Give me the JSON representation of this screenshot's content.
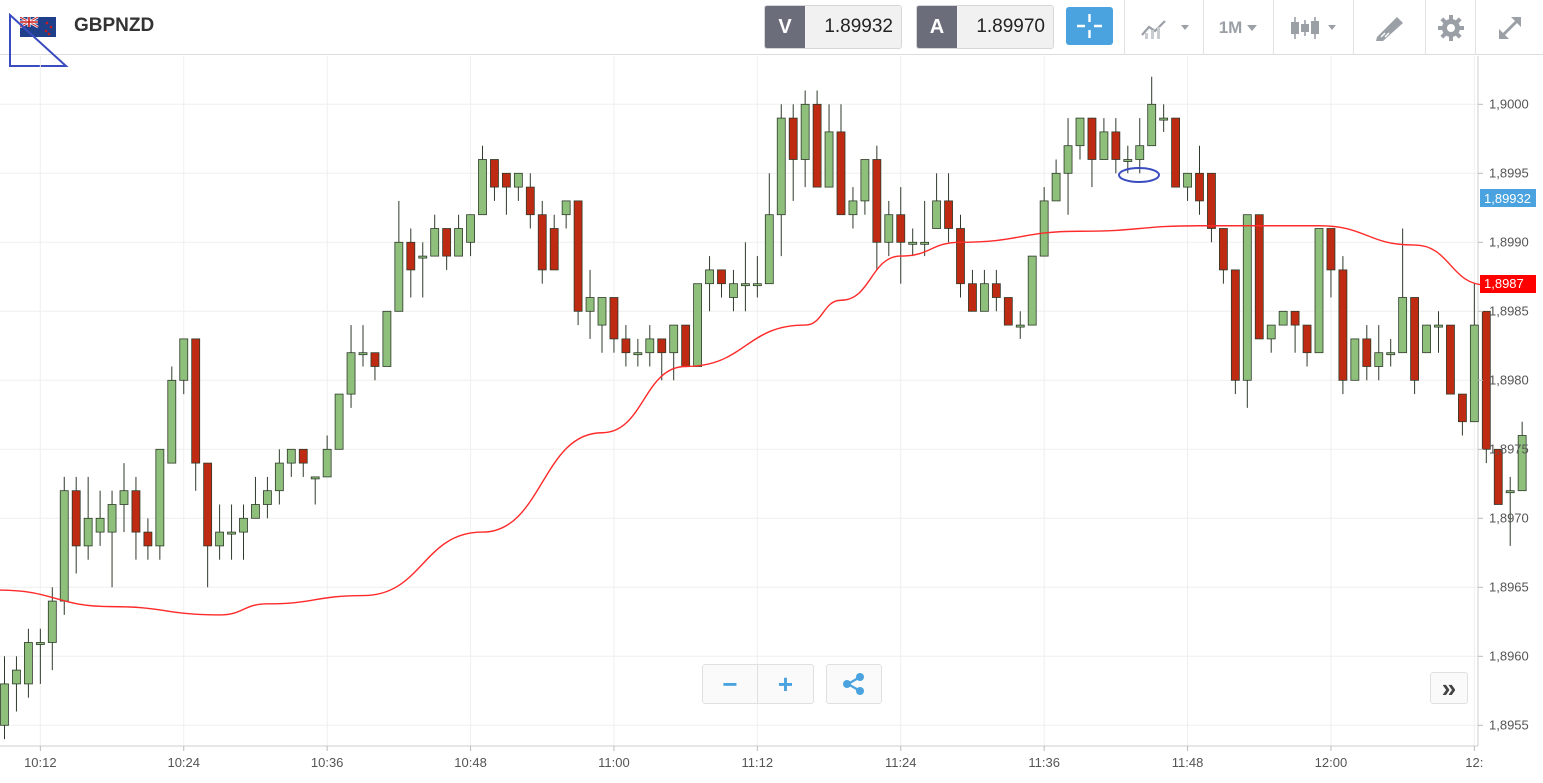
{
  "header": {
    "symbol": "GBPNZD",
    "sell": {
      "tag": "V",
      "value": "1.89932"
    },
    "buy": {
      "tag": "A",
      "value": "1.89970"
    },
    "timeframe": "1M"
  },
  "colors": {
    "up": "#8ec07c",
    "down": "#bf2b12",
    "ma": "#ff2a2a",
    "accent": "#4aa3df",
    "bid_tag": "#4aa3df",
    "ma_tag": "#ff0000"
  },
  "controls": {
    "zoom_out": "−",
    "zoom_in": "+",
    "scroll_end": "»"
  },
  "chart_data": {
    "type": "candlestick",
    "symbol": "GBPNZD",
    "ylim": [
      1.89535,
      1.90035
    ],
    "y_ticks": [
      "1,8955",
      "1,8960",
      "1,8965",
      "1,8970",
      "1,8975",
      "1,8980",
      "1,8985",
      "1,8990",
      "1,8995",
      "1,9000"
    ],
    "y_tick_values": [
      1.8955,
      1.896,
      1.8965,
      1.897,
      1.8975,
      1.898,
      1.8985,
      1.899,
      1.8995,
      1.9
    ],
    "x_ticks": [
      "10:12",
      "10:24",
      "10:36",
      "10:48",
      "11:00",
      "11:12",
      "11:24",
      "11:36",
      "11:48",
      "12:00",
      "12:"
    ],
    "x_tick_index": [
      3,
      15,
      27,
      39,
      51,
      63,
      75,
      87,
      99,
      111,
      123
    ],
    "last_bid_label": "1,89932",
    "last_bid": 1.89932,
    "ma_label": "1,8987",
    "ma_last": 1.8987,
    "candles": [
      [
        1.8955,
        1.8958,
        1.8954,
        1.896
      ],
      [
        1.8958,
        1.8959,
        1.8956,
        1.896
      ],
      [
        1.8958,
        1.8961,
        1.8957,
        1.8962
      ],
      [
        1.8961,
        1.8961,
        1.8958,
        1.8962
      ],
      [
        1.8961,
        1.8964,
        1.8959,
        1.8965
      ],
      [
        1.8964,
        1.8972,
        1.8963,
        1.8973
      ],
      [
        1.8972,
        1.8968,
        1.8966,
        1.8973
      ],
      [
        1.8968,
        1.897,
        1.8967,
        1.8973
      ],
      [
        1.8969,
        1.897,
        1.8968,
        1.8972
      ],
      [
        1.8969,
        1.8971,
        1.8965,
        1.8972
      ],
      [
        1.8971,
        1.8972,
        1.8969,
        1.8974
      ],
      [
        1.8972,
        1.8969,
        1.8967,
        1.8973
      ],
      [
        1.8969,
        1.8968,
        1.8967,
        1.897
      ],
      [
        1.8968,
        1.8975,
        1.8967,
        1.8975
      ],
      [
        1.8974,
        1.898,
        1.8974,
        1.8981
      ],
      [
        1.898,
        1.8983,
        1.8979,
        1.8983
      ],
      [
        1.8983,
        1.8974,
        1.8972,
        1.8983
      ],
      [
        1.8974,
        1.8968,
        1.8965,
        1.8974
      ],
      [
        1.8968,
        1.8969,
        1.8967,
        1.8971
      ],
      [
        1.8969,
        1.8969,
        1.8967,
        1.8971
      ],
      [
        1.8969,
        1.897,
        1.8967,
        1.8971
      ],
      [
        1.897,
        1.8971,
        1.897,
        1.8973
      ],
      [
        1.8971,
        1.8972,
        1.897,
        1.8973
      ],
      [
        1.8972,
        1.8974,
        1.8971,
        1.8975
      ],
      [
        1.8974,
        1.8975,
        1.8973,
        1.8975
      ],
      [
        1.8975,
        1.8974,
        1.8973,
        1.8975
      ],
      [
        1.8973,
        1.8973,
        1.8971,
        1.8973
      ],
      [
        1.8973,
        1.8975,
        1.8973,
        1.8976
      ],
      [
        1.8975,
        1.8979,
        1.8975,
        1.8979
      ],
      [
        1.8979,
        1.8982,
        1.8978,
        1.8984
      ],
      [
        1.8982,
        1.8982,
        1.8981,
        1.8984
      ],
      [
        1.8982,
        1.8981,
        1.898,
        1.8982
      ],
      [
        1.8981,
        1.8985,
        1.8981,
        1.8985
      ],
      [
        1.8985,
        1.899,
        1.8985,
        1.8993
      ],
      [
        1.899,
        1.8988,
        1.8986,
        1.8991
      ],
      [
        1.8989,
        1.8989,
        1.8986,
        1.899
      ],
      [
        1.8989,
        1.8991,
        1.8989,
        1.8992
      ],
      [
        1.8991,
        1.8989,
        1.8988,
        1.8991
      ],
      [
        1.8989,
        1.8991,
        1.8989,
        1.8992
      ],
      [
        1.899,
        1.8992,
        1.8989,
        1.8992
      ],
      [
        1.8992,
        1.8996,
        1.8992,
        1.8997
      ],
      [
        1.8996,
        1.8994,
        1.8993,
        1.8996
      ],
      [
        1.8995,
        1.8994,
        1.8992,
        1.8995
      ],
      [
        1.8994,
        1.8995,
        1.8993,
        1.8995
      ],
      [
        1.8994,
        1.8992,
        1.8991,
        1.8995
      ],
      [
        1.8992,
        1.8988,
        1.8987,
        1.8993
      ],
      [
        1.8991,
        1.8988,
        1.8988,
        1.8992
      ],
      [
        1.8992,
        1.8993,
        1.8991,
        1.8993
      ],
      [
        1.8993,
        1.8985,
        1.8984,
        1.8993
      ],
      [
        1.8985,
        1.8986,
        1.8983,
        1.8988
      ],
      [
        1.8984,
        1.8986,
        1.8982,
        1.8986
      ],
      [
        1.8986,
        1.8983,
        1.8982,
        1.8986
      ],
      [
        1.8983,
        1.8982,
        1.8981,
        1.8984
      ],
      [
        1.8982,
        1.8982,
        1.8981,
        1.8983
      ],
      [
        1.8982,
        1.8983,
        1.8981,
        1.8984
      ],
      [
        1.8983,
        1.8982,
        1.898,
        1.8983
      ],
      [
        1.8982,
        1.8984,
        1.898,
        1.8984
      ],
      [
        1.8984,
        1.8981,
        1.8981,
        1.8984
      ],
      [
        1.8981,
        1.8987,
        1.8981,
        1.8987
      ],
      [
        1.8987,
        1.8988,
        1.8985,
        1.8989
      ],
      [
        1.8988,
        1.8987,
        1.8986,
        1.8988
      ],
      [
        1.8986,
        1.8987,
        1.8985,
        1.8988
      ],
      [
        1.8987,
        1.8987,
        1.8985,
        1.899
      ],
      [
        1.8987,
        1.8987,
        1.8986,
        1.8989
      ],
      [
        1.8987,
        1.8992,
        1.8987,
        1.8995
      ],
      [
        1.8992,
        1.8999,
        1.8989,
        1.9
      ],
      [
        1.8999,
        1.8996,
        1.8993,
        1.9
      ],
      [
        1.8996,
        1.9,
        1.8994,
        1.9001
      ],
      [
        1.9,
        1.8994,
        1.8994,
        1.9001
      ],
      [
        1.8994,
        1.8998,
        1.8994,
        1.9
      ],
      [
        1.8998,
        1.8992,
        1.8992,
        1.9
      ],
      [
        1.8992,
        1.8993,
        1.8991,
        1.8994
      ],
      [
        1.8993,
        1.8996,
        1.8992,
        1.8996
      ],
      [
        1.8996,
        1.899,
        1.8988,
        1.8997
      ],
      [
        1.899,
        1.8992,
        1.8989,
        1.8993
      ],
      [
        1.8992,
        1.899,
        1.8987,
        1.8994
      ],
      [
        1.899,
        1.899,
        1.8989,
        1.8991
      ],
      [
        1.899,
        1.899,
        1.8989,
        1.8993
      ],
      [
        1.8991,
        1.8993,
        1.8991,
        1.8995
      ],
      [
        1.8993,
        1.8991,
        1.899,
        1.8995
      ],
      [
        1.8991,
        1.8987,
        1.8986,
        1.8992
      ],
      [
        1.8987,
        1.8985,
        1.8985,
        1.8988
      ],
      [
        1.8985,
        1.8987,
        1.8985,
        1.8988
      ],
      [
        1.8987,
        1.8986,
        1.8985,
        1.8988
      ],
      [
        1.8986,
        1.8984,
        1.8984,
        1.8986
      ],
      [
        1.8984,
        1.8984,
        1.8983,
        1.8985
      ],
      [
        1.8984,
        1.8989,
        1.8984,
        1.8989
      ],
      [
        1.8989,
        1.8993,
        1.8989,
        1.8994
      ],
      [
        1.8993,
        1.8995,
        1.8993,
        1.8996
      ],
      [
        1.8995,
        1.8997,
        1.8992,
        1.8999
      ],
      [
        1.8997,
        1.8999,
        1.8996,
        1.8999
      ],
      [
        1.8999,
        1.8996,
        1.8994,
        1.8999
      ],
      [
        1.8996,
        1.8998,
        1.8996,
        1.8999
      ],
      [
        1.8998,
        1.8996,
        1.8995,
        1.8999
      ],
      [
        1.8996,
        1.8996,
        1.8995,
        1.8997
      ],
      [
        1.8996,
        1.8997,
        1.8995,
        1.8999
      ],
      [
        1.8997,
        1.9,
        1.8997,
        1.9002
      ],
      [
        1.8999,
        1.8999,
        1.8998,
        1.9
      ],
      [
        1.8999,
        1.8994,
        1.8994,
        1.8999
      ],
      [
        1.8994,
        1.8995,
        1.8993,
        1.8995
      ],
      [
        1.8995,
        1.8993,
        1.8992,
        1.8997
      ],
      [
        1.8995,
        1.8991,
        1.899,
        1.8995
      ],
      [
        1.8991,
        1.8988,
        1.8987,
        1.8991
      ],
      [
        1.8988,
        1.898,
        1.8979,
        1.8988
      ],
      [
        1.898,
        1.8992,
        1.8978,
        1.8992
      ],
      [
        1.8992,
        1.8983,
        1.8983,
        1.8992
      ],
      [
        1.8983,
        1.8984,
        1.8982,
        1.8984
      ],
      [
        1.8984,
        1.8985,
        1.8984,
        1.8985
      ],
      [
        1.8985,
        1.8984,
        1.8982,
        1.8985
      ],
      [
        1.8984,
        1.8982,
        1.8981,
        1.8984
      ],
      [
        1.8982,
        1.8991,
        1.8982,
        1.8991
      ],
      [
        1.8991,
        1.8988,
        1.8986,
        1.8991
      ],
      [
        1.8988,
        1.898,
        1.8979,
        1.8989
      ],
      [
        1.898,
        1.8983,
        1.898,
        1.8983
      ],
      [
        1.8983,
        1.8981,
        1.898,
        1.8984
      ],
      [
        1.8981,
        1.8982,
        1.898,
        1.8984
      ],
      [
        1.8982,
        1.8982,
        1.8981,
        1.8983
      ],
      [
        1.8982,
        1.8986,
        1.8982,
        1.8991
      ],
      [
        1.8986,
        1.898,
        1.8979,
        1.8986
      ],
      [
        1.8982,
        1.8984,
        1.8982,
        1.8984
      ],
      [
        1.8984,
        1.8984,
        1.8982,
        1.8985
      ],
      [
        1.8984,
        1.8979,
        1.8979,
        1.8984
      ],
      [
        1.8979,
        1.8977,
        1.8976,
        1.8979
      ],
      [
        1.8977,
        1.8984,
        1.8977,
        1.8987
      ],
      [
        1.8985,
        1.8975,
        1.8974,
        1.8985
      ],
      [
        1.8975,
        1.8971,
        1.8971,
        1.8975
      ],
      [
        1.8972,
        1.8972,
        1.8968,
        1.8973
      ],
      [
        1.8972,
        1.8976,
        1.8972,
        1.8977
      ]
    ],
    "ma": [
      [
        -0.5,
        1.89648
      ],
      [
        9,
        1.89636
      ],
      [
        18,
        1.8963
      ],
      [
        22,
        1.89638
      ],
      [
        30,
        1.89644
      ],
      [
        40,
        1.8969
      ],
      [
        50,
        1.89762
      ],
      [
        57,
        1.8981
      ],
      [
        67,
        1.8984
      ],
      [
        70,
        1.89858
      ],
      [
        75,
        1.8989
      ],
      [
        80,
        1.899
      ],
      [
        90,
        1.89908
      ],
      [
        100,
        1.89912
      ],
      [
        110,
        1.89912
      ],
      [
        118,
        1.89898
      ],
      [
        124,
        1.89869
      ],
      [
        124.9,
        1.89866
      ]
    ]
  }
}
